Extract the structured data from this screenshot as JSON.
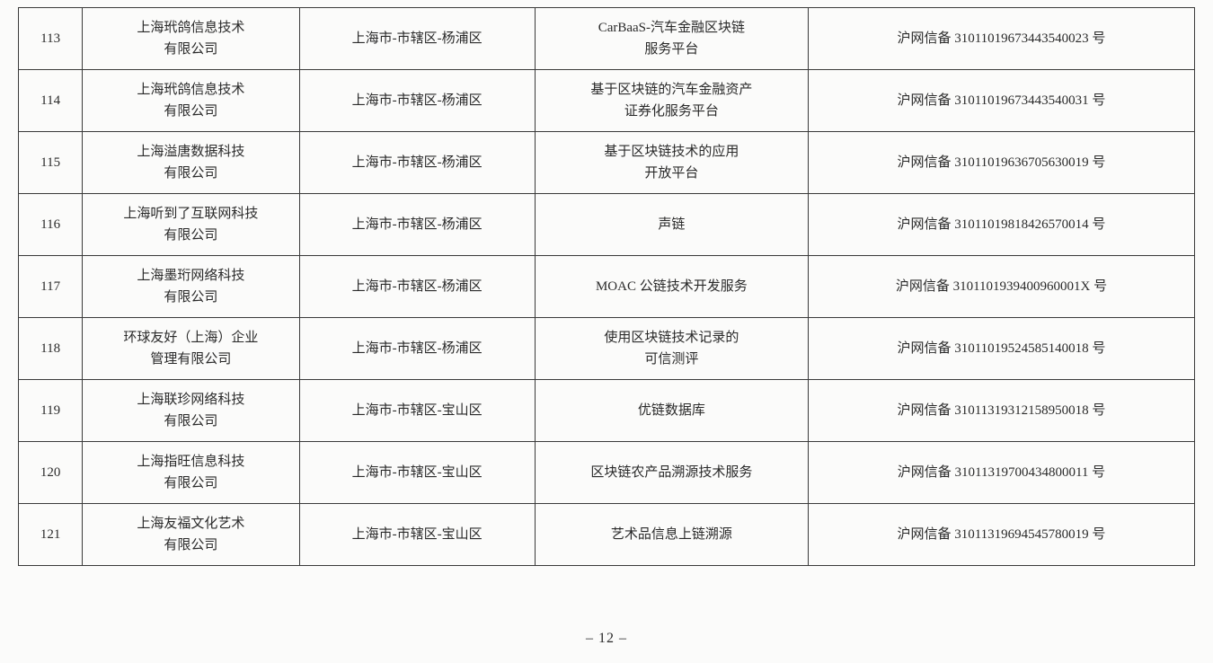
{
  "table": {
    "columns": {
      "idx_width": 68,
      "company_width": 230,
      "location_width": 250,
      "service_width": 290,
      "registration_width": 410
    },
    "rows": [
      {
        "idx": "113",
        "company": "上海玳鸽信息技术\n有限公司",
        "location": "上海市-市辖区-杨浦区",
        "service": "CarBaaS-汽车金融区块链\n服务平台",
        "registration": "沪网信备 31011019673443540023 号"
      },
      {
        "idx": "114",
        "company": "上海玳鸽信息技术\n有限公司",
        "location": "上海市-市辖区-杨浦区",
        "service": "基于区块链的汽车金融资产\n证券化服务平台",
        "registration": "沪网信备 31011019673443540031 号"
      },
      {
        "idx": "115",
        "company": "上海溢唐数据科技\n有限公司",
        "location": "上海市-市辖区-杨浦区",
        "service": "基于区块链技术的应用\n开放平台",
        "registration": "沪网信备 31011019636705630019 号"
      },
      {
        "idx": "116",
        "company": "上海听到了互联网科技\n有限公司",
        "location": "上海市-市辖区-杨浦区",
        "service": "声链",
        "registration": "沪网信备 31011019818426570014 号"
      },
      {
        "idx": "117",
        "company": "上海墨珩网络科技\n有限公司",
        "location": "上海市-市辖区-杨浦区",
        "service": "MOAC 公链技术开发服务",
        "registration": "沪网信备 3101101939400960001X 号"
      },
      {
        "idx": "118",
        "company": "环球友好（上海）企业\n管理有限公司",
        "location": "上海市-市辖区-杨浦区",
        "service": "使用区块链技术记录的\n可信测评",
        "registration": "沪网信备 31011019524585140018 号"
      },
      {
        "idx": "119",
        "company": "上海联珍网络科技\n有限公司",
        "location": "上海市-市辖区-宝山区",
        "service": "优链数据库",
        "registration": "沪网信备 31011319312158950018 号"
      },
      {
        "idx": "120",
        "company": "上海指旺信息科技\n有限公司",
        "location": "上海市-市辖区-宝山区",
        "service": "区块链农产品溯源技术服务",
        "registration": "沪网信备 31011319700434800011 号"
      },
      {
        "idx": "121",
        "company": "上海友福文化艺术\n有限公司",
        "location": "上海市-市辖区-宝山区",
        "service": "艺术品信息上链溯源",
        "registration": "沪网信备 31011319694545780019 号"
      }
    ]
  },
  "page_number": "– 12 –"
}
